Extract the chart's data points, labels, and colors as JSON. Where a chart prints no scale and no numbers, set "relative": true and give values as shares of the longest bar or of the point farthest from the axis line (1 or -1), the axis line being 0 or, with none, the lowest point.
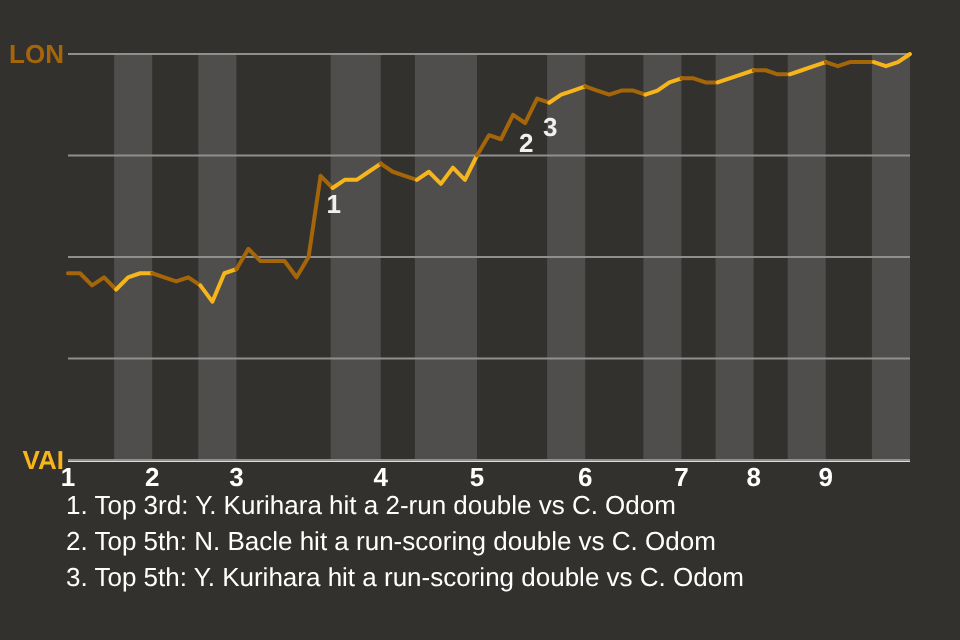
{
  "chart_data": {
    "type": "line",
    "relative": true,
    "categories": [
      "1",
      null,
      null,
      null,
      null,
      null,
      null,
      "2",
      null,
      null,
      null,
      null,
      null,
      null,
      "3",
      null,
      null,
      null,
      null,
      null,
      null,
      null,
      null,
      null,
      null,
      null,
      "4",
      null,
      null,
      null,
      null,
      null,
      null,
      null,
      "5",
      null,
      null,
      null,
      null,
      null,
      null,
      null,
      null,
      "6",
      null,
      null,
      null,
      null,
      null,
      null,
      null,
      "7",
      null,
      null,
      null,
      null,
      null,
      "8",
      null,
      null,
      null,
      null,
      null,
      "9",
      null,
      null,
      null,
      null,
      null,
      null,
      null
    ],
    "line_style": "solid",
    "ref_lines": [
      {
        "axis": "y",
        "value": 1,
        "label": "LON"
      },
      {
        "axis": "y",
        "value": 0.75,
        "label": null
      },
      {
        "axis": "y",
        "value": 0.5,
        "label": null
      },
      {
        "axis": "y",
        "value": 0.25,
        "label": null
      },
      {
        "axis": "y",
        "value": 0,
        "label": "VAI"
      }
    ],
    "series": [
      {
        "color": "#a5660a",
        "values": [
          0.46,
          0.46,
          0.43,
          0.45,
          0.42,
          null,
          null,
          null,
          null,
          null,
          null,
          null,
          null,
          null,
          null,
          null,
          null,
          null,
          null,
          null,
          null,
          null,
          null,
          null,
          null,
          null,
          null,
          null,
          null,
          null,
          null,
          null,
          null,
          null,
          null,
          null,
          null,
          null,
          null,
          null,
          null,
          null,
          null,
          null,
          null,
          null,
          null,
          null,
          null,
          null,
          null,
          null,
          null,
          null,
          null,
          null,
          null,
          null,
          null,
          null,
          null,
          null,
          null,
          null,
          null,
          null,
          null,
          null,
          null,
          null,
          null
        ]
      },
      {
        "color": "#f7b51c",
        "values": [
          null,
          null,
          null,
          null,
          0.42,
          0.45,
          0.46,
          0.46,
          null,
          null,
          null,
          null,
          null,
          null,
          null,
          null,
          null,
          null,
          null,
          null,
          null,
          null,
          null,
          null,
          null,
          null,
          null,
          null,
          null,
          null,
          null,
          null,
          null,
          null,
          null,
          null,
          null,
          null,
          null,
          null,
          null,
          null,
          null,
          null,
          null,
          null,
          null,
          null,
          null,
          null,
          null,
          null,
          null,
          null,
          null,
          null,
          null,
          null,
          null,
          null,
          null,
          null,
          null,
          null,
          null,
          null,
          null,
          null,
          null,
          null,
          null
        ]
      },
      {
        "color": "#a5660a",
        "values": [
          null,
          null,
          null,
          null,
          null,
          null,
          null,
          0.46,
          0.45,
          0.44,
          0.45,
          0.43,
          null,
          null,
          null,
          null,
          null,
          null,
          null,
          null,
          null,
          null,
          null,
          null,
          null,
          null,
          null,
          null,
          null,
          null,
          null,
          null,
          null,
          null,
          null,
          null,
          null,
          null,
          null,
          null,
          null,
          null,
          null,
          null,
          null,
          null,
          null,
          null,
          null,
          null,
          null,
          null,
          null,
          null,
          null,
          null,
          null,
          null,
          null,
          null,
          null,
          null,
          null,
          null,
          null,
          null,
          null,
          null,
          null,
          null,
          null
        ]
      },
      {
        "color": "#f7b51c",
        "values": [
          null,
          null,
          null,
          null,
          null,
          null,
          null,
          null,
          null,
          null,
          null,
          0.43,
          0.39,
          0.46,
          0.47,
          null,
          null,
          null,
          null,
          null,
          null,
          null,
          null,
          null,
          null,
          null,
          null,
          null,
          null,
          null,
          null,
          null,
          null,
          null,
          null,
          null,
          null,
          null,
          null,
          null,
          null,
          null,
          null,
          null,
          null,
          null,
          null,
          null,
          null,
          null,
          null,
          null,
          null,
          null,
          null,
          null,
          null,
          null,
          null,
          null,
          null,
          null,
          null,
          null,
          null,
          null,
          null,
          null,
          null,
          null,
          null
        ]
      },
      {
        "color": "#a5660a",
        "values": [
          null,
          null,
          null,
          null,
          null,
          null,
          null,
          null,
          null,
          null,
          null,
          null,
          null,
          null,
          0.47,
          0.52,
          0.49,
          0.49,
          0.49,
          0.45,
          0.5,
          0.7,
          0.67,
          null,
          null,
          null,
          null,
          null,
          null,
          null,
          null,
          null,
          null,
          null,
          null,
          null,
          null,
          null,
          null,
          null,
          null,
          null,
          null,
          null,
          null,
          null,
          null,
          null,
          null,
          null,
          null,
          null,
          null,
          null,
          null,
          null,
          null,
          null,
          null,
          null,
          null,
          null,
          null,
          null,
          null,
          null,
          null,
          null,
          null,
          null,
          null
        ]
      },
      {
        "color": "#f7b51c",
        "values": [
          null,
          null,
          null,
          null,
          null,
          null,
          null,
          null,
          null,
          null,
          null,
          null,
          null,
          null,
          null,
          null,
          null,
          null,
          null,
          null,
          null,
          null,
          0.67,
          0.69,
          0.69,
          0.71,
          0.73,
          null,
          null,
          null,
          null,
          null,
          null,
          null,
          null,
          null,
          null,
          null,
          null,
          null,
          null,
          null,
          null,
          null,
          null,
          null,
          null,
          null,
          null,
          null,
          null,
          null,
          null,
          null,
          null,
          null,
          null,
          null,
          null,
          null,
          null,
          null,
          null,
          null,
          null,
          null,
          null,
          null,
          null,
          null,
          null
        ]
      },
      {
        "color": "#a5660a",
        "values": [
          null,
          null,
          null,
          null,
          null,
          null,
          null,
          null,
          null,
          null,
          null,
          null,
          null,
          null,
          null,
          null,
          null,
          null,
          null,
          null,
          null,
          null,
          null,
          null,
          null,
          null,
          0.73,
          0.71,
          0.7,
          0.69,
          null,
          null,
          null,
          null,
          null,
          null,
          null,
          null,
          null,
          null,
          null,
          null,
          null,
          null,
          null,
          null,
          null,
          null,
          null,
          null,
          null,
          null,
          null,
          null,
          null,
          null,
          null,
          null,
          null,
          null,
          null,
          null,
          null,
          null,
          null,
          null,
          null,
          null,
          null,
          null,
          null
        ]
      },
      {
        "color": "#f7b51c",
        "values": [
          null,
          null,
          null,
          null,
          null,
          null,
          null,
          null,
          null,
          null,
          null,
          null,
          null,
          null,
          null,
          null,
          null,
          null,
          null,
          null,
          null,
          null,
          null,
          null,
          null,
          null,
          null,
          null,
          null,
          0.69,
          0.71,
          0.68,
          0.72,
          0.69,
          0.75,
          null,
          null,
          null,
          null,
          null,
          null,
          null,
          null,
          null,
          null,
          null,
          null,
          null,
          null,
          null,
          null,
          null,
          null,
          null,
          null,
          null,
          null,
          null,
          null,
          null,
          null,
          null,
          null,
          null,
          null,
          null,
          null,
          null,
          null,
          null,
          null
        ]
      },
      {
        "color": "#a5660a",
        "values": [
          null,
          null,
          null,
          null,
          null,
          null,
          null,
          null,
          null,
          null,
          null,
          null,
          null,
          null,
          null,
          null,
          null,
          null,
          null,
          null,
          null,
          null,
          null,
          null,
          null,
          null,
          null,
          null,
          null,
          null,
          null,
          null,
          null,
          null,
          0.75,
          0.8,
          0.79,
          0.85,
          0.83,
          0.89,
          0.88,
          null,
          null,
          null,
          null,
          null,
          null,
          null,
          null,
          null,
          null,
          null,
          null,
          null,
          null,
          null,
          null,
          null,
          null,
          null,
          null,
          null,
          null,
          null,
          null,
          null,
          null,
          null,
          null,
          null,
          null
        ]
      },
      {
        "color": "#f7b51c",
        "values": [
          null,
          null,
          null,
          null,
          null,
          null,
          null,
          null,
          null,
          null,
          null,
          null,
          null,
          null,
          null,
          null,
          null,
          null,
          null,
          null,
          null,
          null,
          null,
          null,
          null,
          null,
          null,
          null,
          null,
          null,
          null,
          null,
          null,
          null,
          null,
          null,
          null,
          null,
          null,
          null,
          0.88,
          0.9,
          0.91,
          0.92,
          null,
          null,
          null,
          null,
          null,
          null,
          null,
          null,
          null,
          null,
          null,
          null,
          null,
          null,
          null,
          null,
          null,
          null,
          null,
          null,
          null,
          null,
          null,
          null,
          null,
          null,
          null
        ]
      },
      {
        "color": "#a5660a",
        "values": [
          null,
          null,
          null,
          null,
          null,
          null,
          null,
          null,
          null,
          null,
          null,
          null,
          null,
          null,
          null,
          null,
          null,
          null,
          null,
          null,
          null,
          null,
          null,
          null,
          null,
          null,
          null,
          null,
          null,
          null,
          null,
          null,
          null,
          null,
          null,
          null,
          null,
          null,
          null,
          null,
          null,
          null,
          null,
          0.92,
          0.91,
          0.9,
          0.91,
          0.91,
          0.9,
          null,
          null,
          null,
          null,
          null,
          null,
          null,
          null,
          null,
          null,
          null,
          null,
          null,
          null,
          null,
          null,
          null,
          null,
          null,
          null,
          null,
          null
        ]
      },
      {
        "color": "#f7b51c",
        "values": [
          null,
          null,
          null,
          null,
          null,
          null,
          null,
          null,
          null,
          null,
          null,
          null,
          null,
          null,
          null,
          null,
          null,
          null,
          null,
          null,
          null,
          null,
          null,
          null,
          null,
          null,
          null,
          null,
          null,
          null,
          null,
          null,
          null,
          null,
          null,
          null,
          null,
          null,
          null,
          null,
          null,
          null,
          null,
          null,
          null,
          null,
          null,
          null,
          0.9,
          0.91,
          0.93,
          0.94,
          null,
          null,
          null,
          null,
          null,
          null,
          null,
          null,
          null,
          null,
          null,
          null,
          null,
          null,
          null,
          null,
          null,
          null,
          null
        ]
      },
      {
        "color": "#a5660a",
        "values": [
          null,
          null,
          null,
          null,
          null,
          null,
          null,
          null,
          null,
          null,
          null,
          null,
          null,
          null,
          null,
          null,
          null,
          null,
          null,
          null,
          null,
          null,
          null,
          null,
          null,
          null,
          null,
          null,
          null,
          null,
          null,
          null,
          null,
          null,
          null,
          null,
          null,
          null,
          null,
          null,
          null,
          null,
          null,
          null,
          null,
          null,
          null,
          null,
          null,
          null,
          null,
          0.94,
          0.94,
          0.93,
          0.93,
          null,
          null,
          null,
          null,
          null,
          null,
          null,
          null,
          null,
          null,
          null,
          null,
          null,
          null,
          null,
          null
        ]
      },
      {
        "color": "#f7b51c",
        "values": [
          null,
          null,
          null,
          null,
          null,
          null,
          null,
          null,
          null,
          null,
          null,
          null,
          null,
          null,
          null,
          null,
          null,
          null,
          null,
          null,
          null,
          null,
          null,
          null,
          null,
          null,
          null,
          null,
          null,
          null,
          null,
          null,
          null,
          null,
          null,
          null,
          null,
          null,
          null,
          null,
          null,
          null,
          null,
          null,
          null,
          null,
          null,
          null,
          null,
          null,
          null,
          null,
          null,
          null,
          0.93,
          0.94,
          0.95,
          0.96,
          null,
          null,
          null,
          null,
          null,
          null,
          null,
          null,
          null,
          null,
          null,
          null,
          null
        ]
      },
      {
        "color": "#a5660a",
        "values": [
          null,
          null,
          null,
          null,
          null,
          null,
          null,
          null,
          null,
          null,
          null,
          null,
          null,
          null,
          null,
          null,
          null,
          null,
          null,
          null,
          null,
          null,
          null,
          null,
          null,
          null,
          null,
          null,
          null,
          null,
          null,
          null,
          null,
          null,
          null,
          null,
          null,
          null,
          null,
          null,
          null,
          null,
          null,
          null,
          null,
          null,
          null,
          null,
          null,
          null,
          null,
          null,
          null,
          null,
          null,
          null,
          null,
          0.96,
          0.96,
          0.95,
          0.95,
          null,
          null,
          null,
          null,
          null,
          null,
          null,
          null,
          null,
          null
        ]
      },
      {
        "color": "#f7b51c",
        "values": [
          null,
          null,
          null,
          null,
          null,
          null,
          null,
          null,
          null,
          null,
          null,
          null,
          null,
          null,
          null,
          null,
          null,
          null,
          null,
          null,
          null,
          null,
          null,
          null,
          null,
          null,
          null,
          null,
          null,
          null,
          null,
          null,
          null,
          null,
          null,
          null,
          null,
          null,
          null,
          null,
          null,
          null,
          null,
          null,
          null,
          null,
          null,
          null,
          null,
          null,
          null,
          null,
          null,
          null,
          null,
          null,
          null,
          null,
          null,
          null,
          0.95,
          0.96,
          0.97,
          0.98,
          null,
          null,
          null,
          null,
          null,
          null,
          null
        ]
      },
      {
        "color": "#a5660a",
        "values": [
          null,
          null,
          null,
          null,
          null,
          null,
          null,
          null,
          null,
          null,
          null,
          null,
          null,
          null,
          null,
          null,
          null,
          null,
          null,
          null,
          null,
          null,
          null,
          null,
          null,
          null,
          null,
          null,
          null,
          null,
          null,
          null,
          null,
          null,
          null,
          null,
          null,
          null,
          null,
          null,
          null,
          null,
          null,
          null,
          null,
          null,
          null,
          null,
          null,
          null,
          null,
          null,
          null,
          null,
          null,
          null,
          null,
          null,
          null,
          null,
          null,
          null,
          null,
          0.98,
          0.97,
          0.98,
          0.98,
          0.98,
          null,
          null,
          null
        ]
      },
      {
        "color": "#f7b51c",
        "values": [
          null,
          null,
          null,
          null,
          null,
          null,
          null,
          null,
          null,
          null,
          null,
          null,
          null,
          null,
          null,
          null,
          null,
          null,
          null,
          null,
          null,
          null,
          null,
          null,
          null,
          null,
          null,
          null,
          null,
          null,
          null,
          null,
          null,
          null,
          null,
          null,
          null,
          null,
          null,
          null,
          null,
          null,
          null,
          null,
          null,
          null,
          null,
          null,
          null,
          null,
          null,
          null,
          null,
          null,
          null,
          null,
          null,
          null,
          null,
          null,
          null,
          null,
          null,
          null,
          null,
          null,
          null,
          0.98,
          0.97,
          0.98,
          1
        ]
      }
    ],
    "annotations": [
      {
        "text": "1",
        "y": 0.7
      },
      {
        "text": "2",
        "y": 0.85
      },
      {
        "text": "3",
        "y": 0.89
      },
      "1. Top 3rd: Y. Kurihara hit a 2-run double vs C. Odom",
      "2. Top 5th: N. Bacle hit a run-scoring double vs C. Odom",
      "3. Top 5th: Y. Kurihara hit a run-scoring double vs C. Odom"
    ]
  }
}
